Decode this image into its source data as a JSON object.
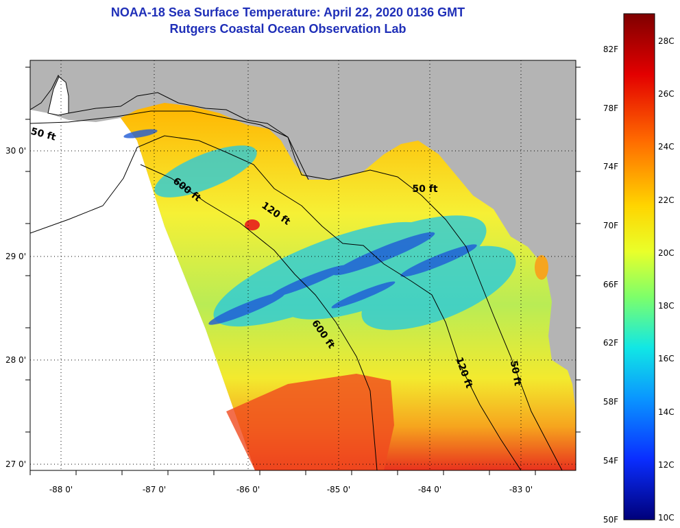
{
  "title": "NOAA-18 Sea Surface Temperature:  April 22, 2020 0136 GMT",
  "subtitle": "Rutgers Coastal Ocean Observation Lab",
  "lon_ticks": [
    "-88 0'",
    "-87 0'",
    "-86 0'",
    "-85 0'",
    "-84 0'",
    "-83 0'"
  ],
  "lat_ticks": [
    "30 0'",
    "29 0'",
    "28 0'",
    "27 0'"
  ],
  "contours": [
    {
      "label": "50 ft"
    },
    {
      "label": "600 ft"
    },
    {
      "label": "120 ft"
    },
    {
      "label": "50 ft"
    },
    {
      "label": "600 ft"
    },
    {
      "label": "120 ft"
    },
    {
      "label": "50 ft"
    }
  ],
  "colorbar": {
    "fahrenheit": [
      "82F",
      "78F",
      "74F",
      "70F",
      "66F",
      "62F",
      "58F",
      "54F",
      "50F"
    ],
    "celsius": [
      "28C",
      "26C",
      "24C",
      "22C",
      "20C",
      "18C",
      "16C",
      "14C",
      "12C",
      "10C"
    ],
    "range_c": [
      10,
      29
    ]
  },
  "colors": {
    "land": "#b4b4b4",
    "title": "#1f2fb8",
    "warm": "#e8321e",
    "cool": "#1e5ad6"
  }
}
